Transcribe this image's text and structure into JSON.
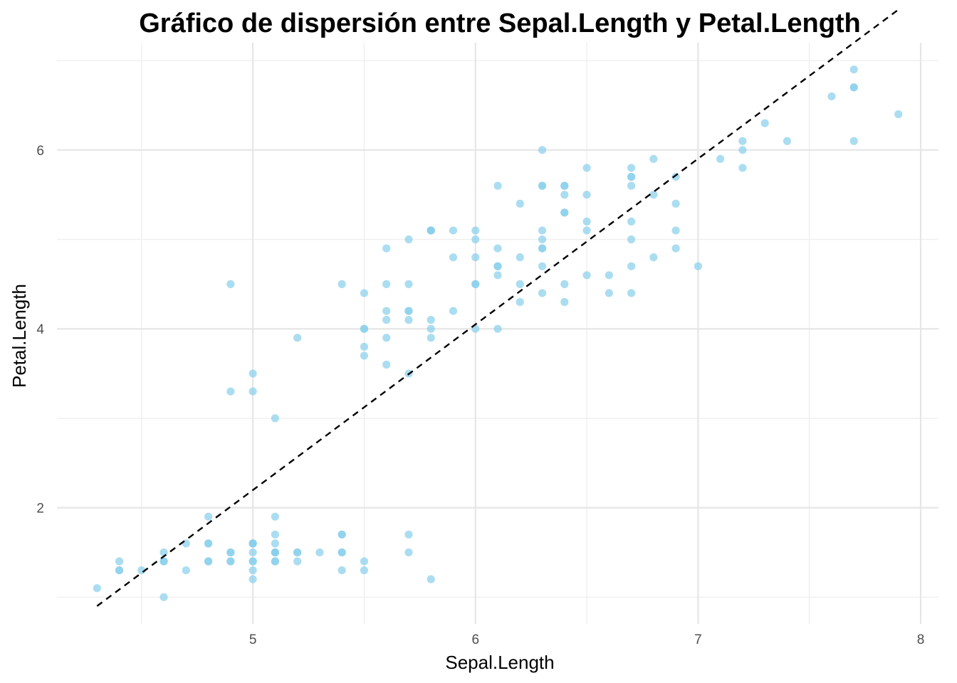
{
  "chart_data": {
    "type": "scatter",
    "title": "Gráfico de dispersión entre Sepal.Length y Petal.Length",
    "xlabel": "Sepal.Length",
    "ylabel": "Petal.Length",
    "xlim": [
      4.12,
      8.08
    ],
    "ylim": [
      0.7,
      7.2
    ],
    "x_ticks": [
      5,
      6,
      7,
      8
    ],
    "x_tick_labels": [
      "5",
      "6",
      "7",
      "8"
    ],
    "y_ticks": [
      2,
      4,
      6
    ],
    "y_tick_labels": [
      "2",
      "4",
      "6"
    ],
    "x_minor_ticks": [
      4.5,
      5.5,
      6.5,
      7.5
    ],
    "y_minor_ticks": [
      1,
      3,
      5,
      7
    ],
    "grid": true,
    "legend": "none",
    "point_color": "#87CEEB",
    "point_opacity": 0.7,
    "line_color": "#000000",
    "reference_line": {
      "style": "dashed",
      "x": [
        4.3,
        7.9
      ],
      "y": [
        0.9,
        7.57
      ]
    },
    "points": [
      {
        "x": 5.1,
        "y": 1.4
      },
      {
        "x": 4.9,
        "y": 1.4
      },
      {
        "x": 4.7,
        "y": 1.3
      },
      {
        "x": 4.6,
        "y": 1.5
      },
      {
        "x": 5.0,
        "y": 1.4
      },
      {
        "x": 5.4,
        "y": 1.7
      },
      {
        "x": 4.6,
        "y": 1.4
      },
      {
        "x": 5.0,
        "y": 1.5
      },
      {
        "x": 4.4,
        "y": 1.4
      },
      {
        "x": 4.9,
        "y": 1.5
      },
      {
        "x": 5.4,
        "y": 1.5
      },
      {
        "x": 4.8,
        "y": 1.6
      },
      {
        "x": 4.8,
        "y": 1.4
      },
      {
        "x": 4.3,
        "y": 1.1
      },
      {
        "x": 5.8,
        "y": 1.2
      },
      {
        "x": 5.7,
        "y": 1.5
      },
      {
        "x": 5.4,
        "y": 1.3
      },
      {
        "x": 5.1,
        "y": 1.4
      },
      {
        "x": 5.7,
        "y": 1.7
      },
      {
        "x": 5.1,
        "y": 1.5
      },
      {
        "x": 5.4,
        "y": 1.7
      },
      {
        "x": 5.1,
        "y": 1.5
      },
      {
        "x": 4.6,
        "y": 1.0
      },
      {
        "x": 5.1,
        "y": 1.7
      },
      {
        "x": 4.8,
        "y": 1.9
      },
      {
        "x": 5.0,
        "y": 1.6
      },
      {
        "x": 5.0,
        "y": 1.6
      },
      {
        "x": 5.2,
        "y": 1.5
      },
      {
        "x": 5.2,
        "y": 1.4
      },
      {
        "x": 4.7,
        "y": 1.6
      },
      {
        "x": 4.8,
        "y": 1.6
      },
      {
        "x": 5.4,
        "y": 1.5
      },
      {
        "x": 5.2,
        "y": 1.5
      },
      {
        "x": 5.5,
        "y": 1.4
      },
      {
        "x": 4.9,
        "y": 1.5
      },
      {
        "x": 5.0,
        "y": 1.2
      },
      {
        "x": 5.5,
        "y": 1.3
      },
      {
        "x": 4.9,
        "y": 1.4
      },
      {
        "x": 4.4,
        "y": 1.3
      },
      {
        "x": 5.1,
        "y": 1.5
      },
      {
        "x": 5.0,
        "y": 1.3
      },
      {
        "x": 4.5,
        "y": 1.3
      },
      {
        "x": 4.4,
        "y": 1.3
      },
      {
        "x": 5.0,
        "y": 1.6
      },
      {
        "x": 5.1,
        "y": 1.9
      },
      {
        "x": 4.8,
        "y": 1.4
      },
      {
        "x": 5.1,
        "y": 1.6
      },
      {
        "x": 4.6,
        "y": 1.4
      },
      {
        "x": 5.3,
        "y": 1.5
      },
      {
        "x": 5.0,
        "y": 1.4
      },
      {
        "x": 7.0,
        "y": 4.7
      },
      {
        "x": 6.4,
        "y": 4.5
      },
      {
        "x": 6.9,
        "y": 4.9
      },
      {
        "x": 5.5,
        "y": 4.0
      },
      {
        "x": 6.5,
        "y": 4.6
      },
      {
        "x": 5.7,
        "y": 4.5
      },
      {
        "x": 6.3,
        "y": 4.7
      },
      {
        "x": 4.9,
        "y": 3.3
      },
      {
        "x": 6.6,
        "y": 4.6
      },
      {
        "x": 5.2,
        "y": 3.9
      },
      {
        "x": 5.0,
        "y": 3.5
      },
      {
        "x": 5.9,
        "y": 4.2
      },
      {
        "x": 6.0,
        "y": 4.0
      },
      {
        "x": 6.1,
        "y": 4.7
      },
      {
        "x": 5.6,
        "y": 3.6
      },
      {
        "x": 6.7,
        "y": 4.4
      },
      {
        "x": 5.6,
        "y": 4.5
      },
      {
        "x": 5.8,
        "y": 4.1
      },
      {
        "x": 6.2,
        "y": 4.5
      },
      {
        "x": 5.6,
        "y": 3.9
      },
      {
        "x": 5.9,
        "y": 4.8
      },
      {
        "x": 6.1,
        "y": 4.0
      },
      {
        "x": 6.3,
        "y": 4.9
      },
      {
        "x": 6.1,
        "y": 4.7
      },
      {
        "x": 6.4,
        "y": 4.3
      },
      {
        "x": 6.6,
        "y": 4.4
      },
      {
        "x": 6.8,
        "y": 4.8
      },
      {
        "x": 6.7,
        "y": 5.0
      },
      {
        "x": 6.0,
        "y": 4.5
      },
      {
        "x": 5.7,
        "y": 3.5
      },
      {
        "x": 5.5,
        "y": 3.8
      },
      {
        "x": 5.5,
        "y": 3.7
      },
      {
        "x": 5.8,
        "y": 3.9
      },
      {
        "x": 6.0,
        "y": 5.1
      },
      {
        "x": 5.4,
        "y": 4.5
      },
      {
        "x": 6.0,
        "y": 4.5
      },
      {
        "x": 6.7,
        "y": 4.7
      },
      {
        "x": 6.3,
        "y": 4.4
      },
      {
        "x": 5.6,
        "y": 4.1
      },
      {
        "x": 5.5,
        "y": 4.0
      },
      {
        "x": 5.5,
        "y": 4.4
      },
      {
        "x": 6.1,
        "y": 4.6
      },
      {
        "x": 5.8,
        "y": 4.0
      },
      {
        "x": 5.0,
        "y": 3.3
      },
      {
        "x": 5.6,
        "y": 4.2
      },
      {
        "x": 5.7,
        "y": 4.2
      },
      {
        "x": 5.7,
        "y": 4.2
      },
      {
        "x": 6.2,
        "y": 4.3
      },
      {
        "x": 5.1,
        "y": 3.0
      },
      {
        "x": 5.7,
        "y": 4.1
      },
      {
        "x": 6.3,
        "y": 6.0
      },
      {
        "x": 5.8,
        "y": 5.1
      },
      {
        "x": 7.1,
        "y": 5.9
      },
      {
        "x": 6.3,
        "y": 5.6
      },
      {
        "x": 6.5,
        "y": 5.8
      },
      {
        "x": 7.6,
        "y": 6.6
      },
      {
        "x": 4.9,
        "y": 4.5
      },
      {
        "x": 7.3,
        "y": 6.3
      },
      {
        "x": 6.7,
        "y": 5.8
      },
      {
        "x": 7.2,
        "y": 6.1
      },
      {
        "x": 6.5,
        "y": 5.1
      },
      {
        "x": 6.4,
        "y": 5.3
      },
      {
        "x": 6.8,
        "y": 5.5
      },
      {
        "x": 5.7,
        "y": 5.0
      },
      {
        "x": 5.8,
        "y": 5.1
      },
      {
        "x": 6.4,
        "y": 5.3
      },
      {
        "x": 6.5,
        "y": 5.5
      },
      {
        "x": 7.7,
        "y": 6.7
      },
      {
        "x": 7.7,
        "y": 6.9
      },
      {
        "x": 6.0,
        "y": 5.0
      },
      {
        "x": 6.9,
        "y": 5.7
      },
      {
        "x": 5.6,
        "y": 4.9
      },
      {
        "x": 7.7,
        "y": 6.7
      },
      {
        "x": 6.3,
        "y": 4.9
      },
      {
        "x": 6.7,
        "y": 5.7
      },
      {
        "x": 7.2,
        "y": 6.0
      },
      {
        "x": 6.2,
        "y": 4.8
      },
      {
        "x": 6.1,
        "y": 4.9
      },
      {
        "x": 6.4,
        "y": 5.6
      },
      {
        "x": 7.2,
        "y": 5.8
      },
      {
        "x": 7.4,
        "y": 6.1
      },
      {
        "x": 7.9,
        "y": 6.4
      },
      {
        "x": 6.4,
        "y": 5.6
      },
      {
        "x": 6.3,
        "y": 5.1
      },
      {
        "x": 6.1,
        "y": 5.6
      },
      {
        "x": 7.7,
        "y": 6.1
      },
      {
        "x": 6.3,
        "y": 5.6
      },
      {
        "x": 6.4,
        "y": 5.5
      },
      {
        "x": 6.0,
        "y": 4.8
      },
      {
        "x": 6.9,
        "y": 5.4
      },
      {
        "x": 6.7,
        "y": 5.6
      },
      {
        "x": 6.9,
        "y": 5.1
      },
      {
        "x": 5.8,
        "y": 5.1
      },
      {
        "x": 6.8,
        "y": 5.9
      },
      {
        "x": 6.7,
        "y": 5.7
      },
      {
        "x": 6.7,
        "y": 5.2
      },
      {
        "x": 6.3,
        "y": 5.0
      },
      {
        "x": 6.5,
        "y": 5.2
      },
      {
        "x": 6.2,
        "y": 5.4
      },
      {
        "x": 5.9,
        "y": 5.1
      }
    ]
  }
}
